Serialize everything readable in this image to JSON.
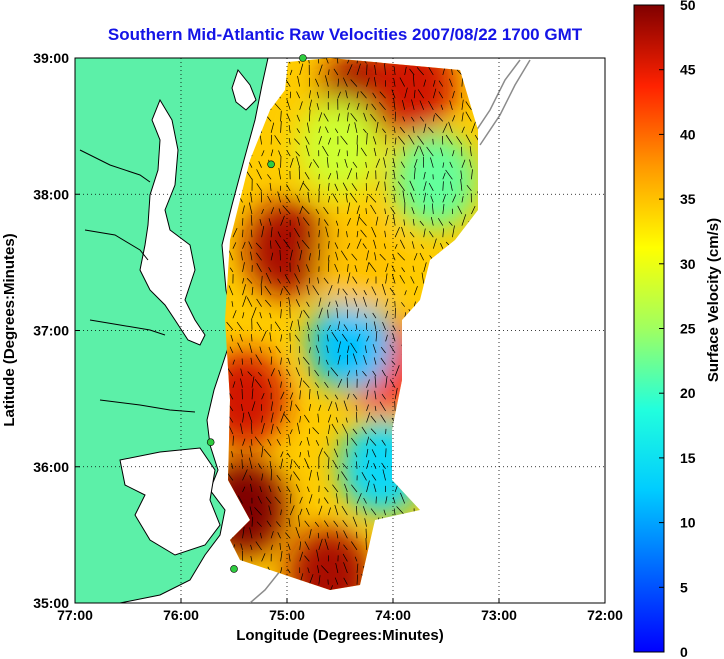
{
  "chart_data": {
    "type": "heatmap",
    "title": "Southern Mid-Atlantic Raw Velocities 2007/08/22 1700 GMT",
    "title_color": "#1414e6",
    "xlabel": "Longitude (Degrees:Minutes)",
    "ylabel": "Latitude (Degrees:Minutes)",
    "colorbar_label": "Surface Velocity (cm/s)",
    "xlim": [
      -77.0,
      -72.0
    ],
    "ylim": [
      35.0,
      39.0
    ],
    "x_ticks": [
      {
        "value": -77,
        "label": "77:00"
      },
      {
        "value": -76,
        "label": "76:00"
      },
      {
        "value": -75,
        "label": "75:00"
      },
      {
        "value": -74,
        "label": "74:00"
      },
      {
        "value": -73,
        "label": "73:00"
      },
      {
        "value": -72,
        "label": "72:00"
      }
    ],
    "y_ticks": [
      {
        "value": 35,
        "label": "35:00"
      },
      {
        "value": 36,
        "label": "36:00"
      },
      {
        "value": 37,
        "label": "37:00"
      },
      {
        "value": 38,
        "label": "38:00"
      },
      {
        "value": 39,
        "label": "39:00"
      }
    ],
    "colorbar_range": [
      0,
      50
    ],
    "colorbar_ticks": [
      "0",
      "5",
      "10",
      "15",
      "20",
      "25",
      "30",
      "35",
      "40",
      "45",
      "50"
    ],
    "grid": true,
    "colormap": "jet",
    "colors": {
      "land": "#5cf0a8",
      "ocean": "#ffffff",
      "coastline": "#000000",
      "bathymetry": "#8c8c8c",
      "station": "#2ecc40",
      "vector": "#000000"
    },
    "stations": [
      {
        "lon": -74.85,
        "lat": 39.0
      },
      {
        "lon": -75.15,
        "lat": 38.22
      },
      {
        "lon": -75.72,
        "lat": 36.18
      },
      {
        "lon": -75.5,
        "lat": 35.25
      }
    ],
    "velocity_hotspots": [
      {
        "lon": -74.3,
        "lat": 38.7,
        "speed": 48
      },
      {
        "lon": -75.0,
        "lat": 37.6,
        "speed": 48
      },
      {
        "lon": -75.4,
        "lat": 36.5,
        "speed": 46
      },
      {
        "lon": -75.4,
        "lat": 35.7,
        "speed": 50
      },
      {
        "lon": -73.8,
        "lat": 38.8,
        "speed": 46
      },
      {
        "lon": -74.6,
        "lat": 35.2,
        "speed": 48
      },
      {
        "lon": -74.1,
        "lat": 36.75,
        "speed": 44
      },
      {
        "lon": -74.4,
        "lat": 36.9,
        "speed": 12
      },
      {
        "lon": -74.1,
        "lat": 36.0,
        "speed": 14
      },
      {
        "lon": -74.5,
        "lat": 38.35,
        "speed": 28
      },
      {
        "lon": -73.6,
        "lat": 38.1,
        "speed": 22
      },
      {
        "lon": -74.3,
        "lat": 37.5,
        "speed": 35
      }
    ]
  }
}
